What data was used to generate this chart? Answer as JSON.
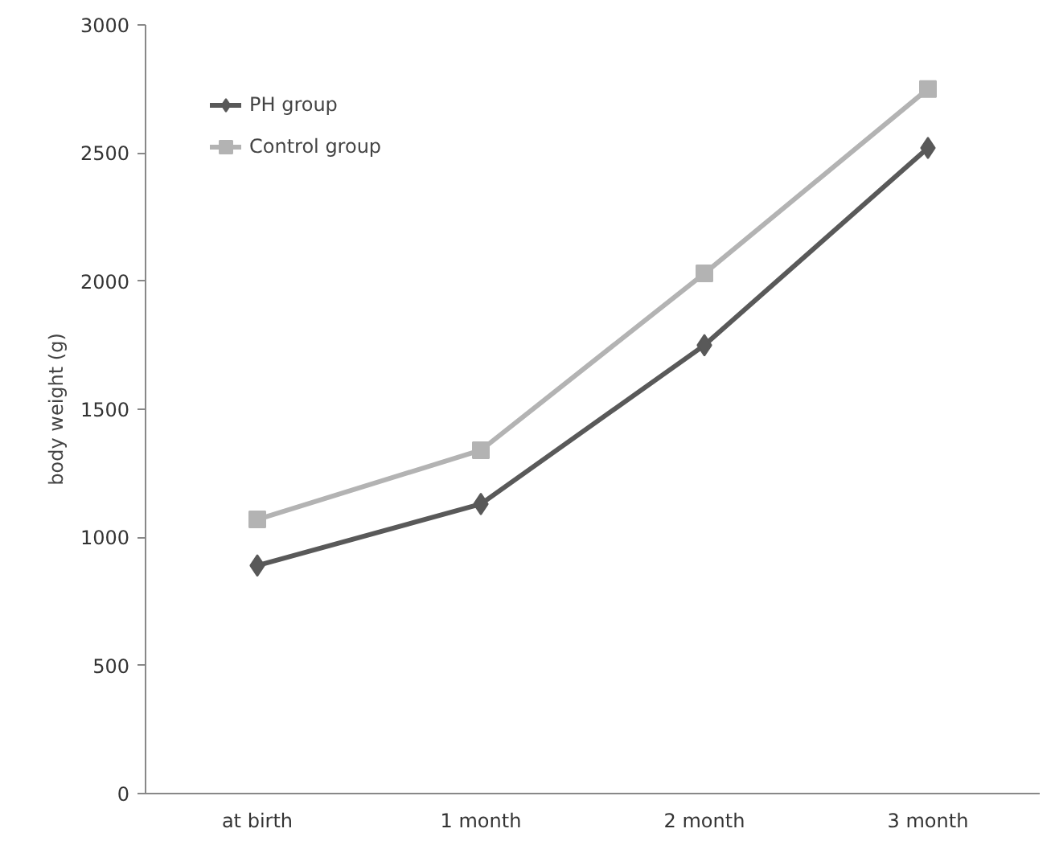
{
  "chart_data": {
    "type": "line",
    "ylabel": "body weight (g)",
    "categories": [
      "at birth",
      "1 month",
      "2 month",
      "3 month"
    ],
    "series": [
      {
        "name": "PH group",
        "color": "#595959",
        "marker": "diamond",
        "values": [
          890,
          1130,
          1750,
          2520
        ]
      },
      {
        "name": "Control group",
        "color": "#b3b3b3",
        "marker": "square",
        "values": [
          1070,
          1340,
          2030,
          2750
        ]
      }
    ],
    "ylim": [
      0,
      3000
    ],
    "yticks": [
      0,
      500,
      1000,
      1500,
      2000,
      2500,
      3000
    ],
    "grid": false,
    "legend": "top left",
    "line_style": "solid"
  }
}
